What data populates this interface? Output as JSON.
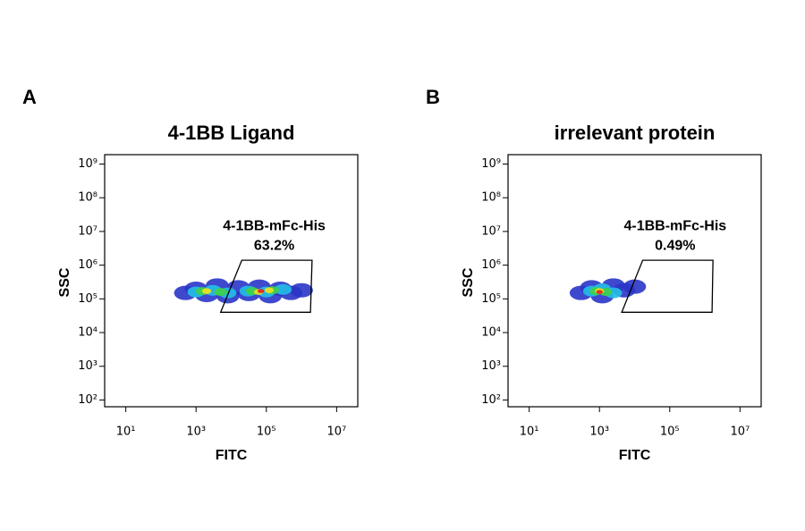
{
  "chart_data": [
    {
      "type": "density-scatter",
      "panel_label": "A",
      "title": "4-1BB Ligand",
      "x_label": "FITC",
      "y_label": "SSC",
      "log_x": true,
      "log_y": true,
      "xlim": [
        2.5,
        40000000
      ],
      "ylim": [
        63,
        1900000000
      ],
      "xticks": [
        {
          "value": 10,
          "label": "10¹"
        },
        {
          "value": 1000,
          "label": "10³"
        },
        {
          "value": 100000,
          "label": "10⁵"
        },
        {
          "value": 10000000,
          "label": "10⁷"
        }
      ],
      "yticks": [
        {
          "value": 100,
          "label": "10²"
        },
        {
          "value": 1000,
          "label": "10³"
        },
        {
          "value": 10000,
          "label": "10⁴"
        },
        {
          "value": 100000,
          "label": "10⁵"
        },
        {
          "value": 1000000,
          "label": "10⁶"
        },
        {
          "value": 10000000,
          "label": "10⁷"
        },
        {
          "value": 100000000,
          "label": "10⁸"
        },
        {
          "value": 1000000000,
          "label": "10⁹"
        }
      ],
      "density_levels": [
        {
          "color": "#2a35c8",
          "x": [
            500,
            1000,
            2000,
            4000,
            8000,
            16000,
            32000,
            63000,
            130000,
            250000,
            500000,
            1000000
          ],
          "y": [
            150000,
            200000,
            130000,
            250000,
            120000,
            220000,
            140000,
            230000,
            120000,
            200000,
            150000,
            180000
          ]
        },
        {
          "color": "#22c0e6",
          "x": [
            1000,
            3000,
            8000,
            30000,
            100000,
            300000
          ],
          "y": [
            160000,
            180000,
            150000,
            170000,
            160000,
            190000
          ]
        },
        {
          "color": "#3fd045",
          "x": [
            1500,
            5000,
            40000,
            150000
          ],
          "y": [
            170000,
            160000,
            170000,
            180000
          ]
        },
        {
          "color": "#f2e020",
          "x": [
            2000,
            60000,
            120000
          ],
          "y": [
            170000,
            160000,
            180000
          ]
        },
        {
          "color": "#e02020",
          "x": [
            70000
          ],
          "y": [
            170000
          ]
        }
      ],
      "gate": {
        "name": "4-1BB-mFc-His",
        "percent": {
          "value": 63.2,
          "label": "63.2%"
        },
        "x": [
          20000,
          2000000,
          1800000,
          5000
        ],
        "y": [
          1400000,
          1400000,
          40000,
          40000
        ]
      }
    },
    {
      "type": "density-scatter",
      "panel_label": "B",
      "title": "irrelevant protein",
      "x_label": "FITC",
      "y_label": "SSC",
      "log_x": true,
      "log_y": true,
      "xlim": [
        2.5,
        40000000
      ],
      "ylim": [
        63,
        1900000000
      ],
      "xticks": [
        {
          "value": 10,
          "label": "10¹"
        },
        {
          "value": 1000,
          "label": "10³"
        },
        {
          "value": 100000,
          "label": "10⁵"
        },
        {
          "value": 10000000,
          "label": "10⁷"
        }
      ],
      "yticks": [
        {
          "value": 100,
          "label": "10²"
        },
        {
          "value": 1000,
          "label": "10³"
        },
        {
          "value": 10000,
          "label": "10⁴"
        },
        {
          "value": 100000,
          "label": "10⁵"
        },
        {
          "value": 1000000,
          "label": "10⁶"
        },
        {
          "value": 10000000,
          "label": "10⁷"
        },
        {
          "value": 100000000,
          "label": "10⁸"
        },
        {
          "value": 1000000000,
          "label": "10⁹"
        }
      ],
      "density_levels": [
        {
          "color": "#2a35c8",
          "x": [
            300,
            600,
            1200,
            2500,
            5000,
            10000
          ],
          "y": [
            150000,
            220000,
            120000,
            250000,
            180000,
            230000
          ]
        },
        {
          "color": "#22c0e6",
          "x": [
            600,
            1200,
            2500
          ],
          "y": [
            170000,
            200000,
            150000
          ]
        },
        {
          "color": "#3fd045",
          "x": [
            800,
            1500
          ],
          "y": [
            170000,
            160000
          ]
        },
        {
          "color": "#f2e020",
          "x": [
            1000
          ],
          "y": [
            170000
          ]
        },
        {
          "color": "#e02020",
          "x": [
            1000
          ],
          "y": [
            160000
          ]
        }
      ],
      "gate": {
        "name": "4-1BB-mFc-His",
        "percent": {
          "value": 0.49,
          "label": "0.49%"
        },
        "x": [
          17000,
          1700000,
          1600000,
          4300
        ],
        "y": [
          1400000,
          1400000,
          40000,
          40000
        ]
      }
    }
  ]
}
